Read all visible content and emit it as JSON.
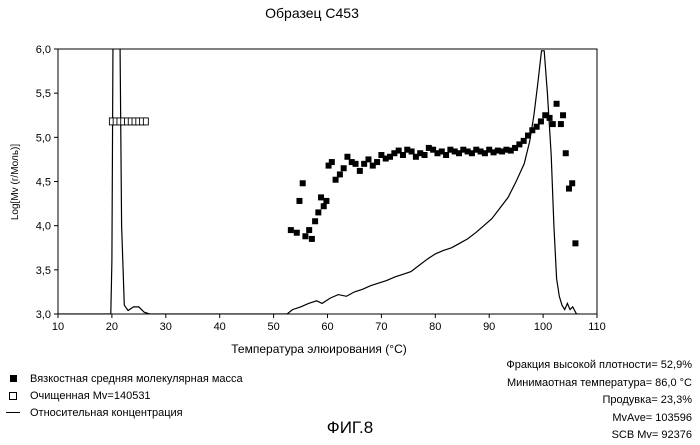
{
  "chart_data": {
    "type": "scatter",
    "title": "Образец С453",
    "xlabel": "Температура элюирования (°C)",
    "ylabel": "Log[Mv (г/Моль)]",
    "xlim": [
      10,
      110
    ],
    "ylim": [
      3.0,
      6.0
    ],
    "xticks": [
      "10",
      "20",
      "30",
      "40",
      "50",
      "60",
      "70",
      "80",
      "90",
      "100",
      "110"
    ],
    "yticks": [
      "3,0",
      "3,5",
      "4,0",
      "4,5",
      "5,0",
      "5,5",
      "6,0"
    ],
    "grid": false,
    "series": [
      {
        "name": "Вязкостная средняя молекулярная масса",
        "style": "filled-square",
        "points": [
          [
            53.2,
            3.95
          ],
          [
            54.3,
            3.92
          ],
          [
            54.8,
            4.28
          ],
          [
            55.4,
            4.48
          ],
          [
            55.9,
            3.88
          ],
          [
            56.6,
            3.95
          ],
          [
            57.1,
            3.85
          ],
          [
            57.7,
            4.05
          ],
          [
            58.3,
            4.15
          ],
          [
            58.8,
            4.32
          ],
          [
            59.3,
            4.22
          ],
          [
            59.8,
            4.28
          ],
          [
            60.2,
            4.68
          ],
          [
            60.8,
            4.72
          ],
          [
            61.5,
            4.52
          ],
          [
            62.3,
            4.58
          ],
          [
            63.0,
            4.65
          ],
          [
            63.7,
            4.78
          ],
          [
            64.5,
            4.72
          ],
          [
            65.2,
            4.7
          ],
          [
            66.0,
            4.62
          ],
          [
            66.8,
            4.7
          ],
          [
            67.6,
            4.75
          ],
          [
            68.4,
            4.68
          ],
          [
            69.2,
            4.72
          ],
          [
            70.0,
            4.8
          ],
          [
            70.8,
            4.76
          ],
          [
            71.6,
            4.78
          ],
          [
            72.4,
            4.82
          ],
          [
            73.2,
            4.85
          ],
          [
            74.0,
            4.8
          ],
          [
            74.8,
            4.86
          ],
          [
            75.6,
            4.84
          ],
          [
            76.4,
            4.78
          ],
          [
            77.2,
            4.82
          ],
          [
            78.0,
            4.8
          ],
          [
            78.8,
            4.88
          ],
          [
            79.6,
            4.86
          ],
          [
            80.4,
            4.82
          ],
          [
            81.2,
            4.84
          ],
          [
            82.0,
            4.8
          ],
          [
            82.8,
            4.86
          ],
          [
            83.6,
            4.84
          ],
          [
            84.4,
            4.82
          ],
          [
            85.2,
            4.86
          ],
          [
            86.0,
            4.84
          ],
          [
            86.8,
            4.82
          ],
          [
            87.6,
            4.86
          ],
          [
            88.4,
            4.84
          ],
          [
            89.2,
            4.82
          ],
          [
            90.0,
            4.86
          ],
          [
            90.8,
            4.83
          ],
          [
            91.6,
            4.85
          ],
          [
            92.4,
            4.84
          ],
          [
            93.2,
            4.86
          ],
          [
            94.0,
            4.85
          ],
          [
            94.8,
            4.88
          ],
          [
            95.6,
            4.92
          ],
          [
            96.4,
            4.96
          ],
          [
            97.2,
            5.02
          ],
          [
            98.0,
            5.08
          ],
          [
            98.8,
            5.12
          ],
          [
            99.6,
            5.18
          ],
          [
            100.4,
            5.25
          ],
          [
            101.2,
            5.22
          ],
          [
            101.8,
            5.15
          ],
          [
            102.5,
            5.38
          ],
          [
            103.3,
            5.15
          ],
          [
            103.7,
            5.25
          ],
          [
            104.2,
            4.82
          ],
          [
            104.8,
            4.42
          ],
          [
            105.4,
            4.48
          ],
          [
            106.0,
            3.8
          ]
        ]
      },
      {
        "name": "Очищенная Mv=140531",
        "style": "open-square",
        "points": [
          [
            20.0,
            5.18
          ],
          [
            20.7,
            5.18
          ],
          [
            21.4,
            5.18
          ],
          [
            22.1,
            5.18
          ],
          [
            22.8,
            5.18
          ],
          [
            23.5,
            5.18
          ],
          [
            24.2,
            5.18
          ],
          [
            24.9,
            5.18
          ],
          [
            25.6,
            5.18
          ],
          [
            26.3,
            5.18
          ]
        ]
      },
      {
        "name": "Относительная концентрация",
        "style": "line",
        "points": [
          [
            10,
            3.0
          ],
          [
            19.8,
            3.0
          ],
          [
            20.0,
            3.6
          ],
          [
            20.2,
            6.1
          ],
          [
            21.5,
            6.1
          ],
          [
            21.8,
            4.0
          ],
          [
            22.3,
            3.1
          ],
          [
            23.0,
            3.04
          ],
          [
            24.0,
            3.08
          ],
          [
            25.0,
            3.08
          ],
          [
            26.0,
            3.02
          ],
          [
            27.0,
            3.0
          ],
          [
            52.5,
            3.0
          ],
          [
            53.5,
            3.05
          ],
          [
            55.0,
            3.08
          ],
          [
            56.5,
            3.12
          ],
          [
            58.0,
            3.15
          ],
          [
            59.0,
            3.12
          ],
          [
            60.5,
            3.18
          ],
          [
            62.0,
            3.22
          ],
          [
            63.5,
            3.2
          ],
          [
            65.0,
            3.25
          ],
          [
            66.5,
            3.28
          ],
          [
            68.0,
            3.32
          ],
          [
            69.5,
            3.35
          ],
          [
            71.0,
            3.38
          ],
          [
            72.5,
            3.42
          ],
          [
            74.0,
            3.45
          ],
          [
            75.5,
            3.48
          ],
          [
            77.0,
            3.55
          ],
          [
            78.5,
            3.62
          ],
          [
            80.0,
            3.68
          ],
          [
            81.5,
            3.72
          ],
          [
            83.0,
            3.75
          ],
          [
            84.5,
            3.8
          ],
          [
            86.0,
            3.85
          ],
          [
            87.5,
            3.92
          ],
          [
            89.0,
            4.0
          ],
          [
            90.5,
            4.08
          ],
          [
            92.0,
            4.2
          ],
          [
            93.5,
            4.32
          ],
          [
            95.0,
            4.5
          ],
          [
            96.5,
            4.7
          ],
          [
            97.5,
            4.95
          ],
          [
            98.3,
            5.25
          ],
          [
            99.0,
            5.6
          ],
          [
            99.7,
            5.98
          ],
          [
            100.2,
            5.98
          ],
          [
            100.8,
            5.5
          ],
          [
            101.5,
            4.8
          ],
          [
            102.0,
            4.0
          ],
          [
            102.5,
            3.4
          ],
          [
            103.0,
            3.2
          ],
          [
            103.5,
            3.1
          ],
          [
            104.0,
            3.05
          ],
          [
            104.5,
            3.12
          ],
          [
            105.0,
            3.05
          ],
          [
            105.5,
            3.08
          ],
          [
            106.2,
            3.0
          ],
          [
            106.5,
            3.0
          ]
        ]
      }
    ]
  },
  "legend": {
    "items": [
      {
        "label": "Вязкостная средняя молекулярная масса",
        "symbol": "filled-square"
      },
      {
        "label": "Очищенная Mv=140531",
        "symbol": "open-square"
      },
      {
        "label": "Относительная концентрация",
        "symbol": "line"
      }
    ]
  },
  "stats": {
    "high_density_fraction": "Фракция высокой плотности= 52,9%",
    "min_temperature": "Минимаотная температура= 86,0 °C",
    "purge": "Продувка= 23,3%",
    "mv_ave": "MvAve= 103596",
    "scb_mv": "SCB Mv= 92376"
  },
  "figure_label": "ФИГ.8"
}
